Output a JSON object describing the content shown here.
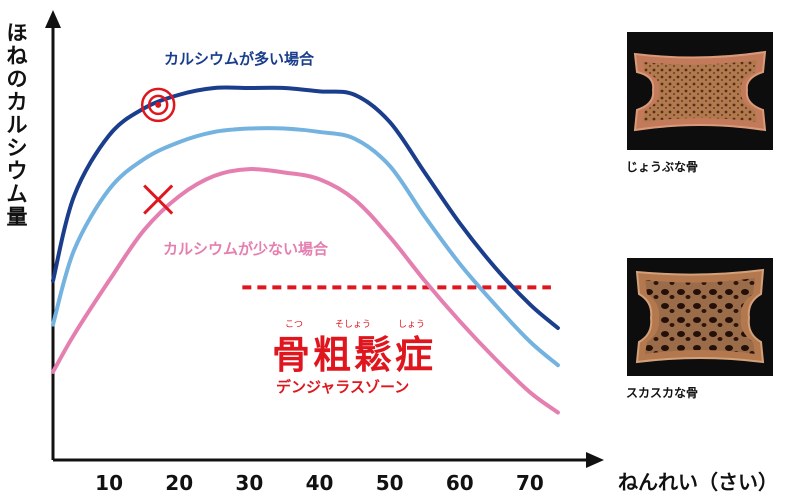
{
  "y_axis_label": "ほねのカルシウム量",
  "x_axis_label": "ねんれい（さい）",
  "annotations": {
    "high_calcium": "カルシウムが多い場合",
    "low_calcium": "カルシウムが少ない場合",
    "osteoporosis_title": "骨粗鬆症",
    "osteoporosis_ruby": [
      "こつ",
      "そしょう",
      "しょう"
    ],
    "osteoporosis_zone": "デンジャラスゾーン"
  },
  "images": {
    "strong_bone_caption": "じょうぶな骨",
    "weak_bone_caption": "スカスカな骨"
  },
  "colors": {
    "high": "#1a3d8c",
    "normal": "#74b3e0",
    "low": "#e47fb0",
    "danger": "#e0161e",
    "axis": "#111111"
  },
  "chart_data": {
    "type": "line",
    "xlabel": "ねんれい（さい）",
    "ylabel": "ほねのカルシウム量",
    "x_ticks": [
      10,
      20,
      30,
      40,
      50,
      60,
      70
    ],
    "xlim": [
      2,
      80
    ],
    "y_ticks_shown": false,
    "grid": false,
    "series": [
      {
        "name": "カルシウムが多い場合",
        "x": [
          2,
          5,
          10,
          15,
          20,
          25,
          30,
          35,
          40,
          45,
          50,
          55,
          60,
          65,
          70,
          74
        ],
        "y": [
          43,
          68,
          86,
          94,
          98,
          100,
          100,
          100,
          99,
          98,
          90,
          75,
          60,
          47,
          36,
          29
        ]
      },
      {
        "x": [
          2,
          5,
          10,
          15,
          20,
          25,
          30,
          35,
          40,
          45,
          50,
          55,
          60,
          65,
          70,
          74
        ],
        "y": [
          30,
          52,
          70,
          79,
          84,
          87,
          88,
          88,
          87,
          85,
          77,
          62,
          48,
          36,
          25,
          18
        ]
      },
      {
        "name": "カルシウムが少ない場合",
        "x": [
          2,
          5,
          10,
          15,
          20,
          25,
          30,
          35,
          40,
          45,
          50,
          55,
          60,
          65,
          70,
          74
        ],
        "y": [
          16,
          27,
          43,
          58,
          68,
          74,
          76,
          75,
          73,
          67,
          56,
          43,
          31,
          20,
          10,
          4
        ]
      }
    ],
    "threshold": {
      "y": 41,
      "x_start": 29,
      "x_end": 73,
      "style": "dashed"
    },
    "markers": [
      {
        "type": "double-circle",
        "x": 17,
        "y": 95
      },
      {
        "type": "cross",
        "x": 17,
        "y": 67
      }
    ]
  }
}
